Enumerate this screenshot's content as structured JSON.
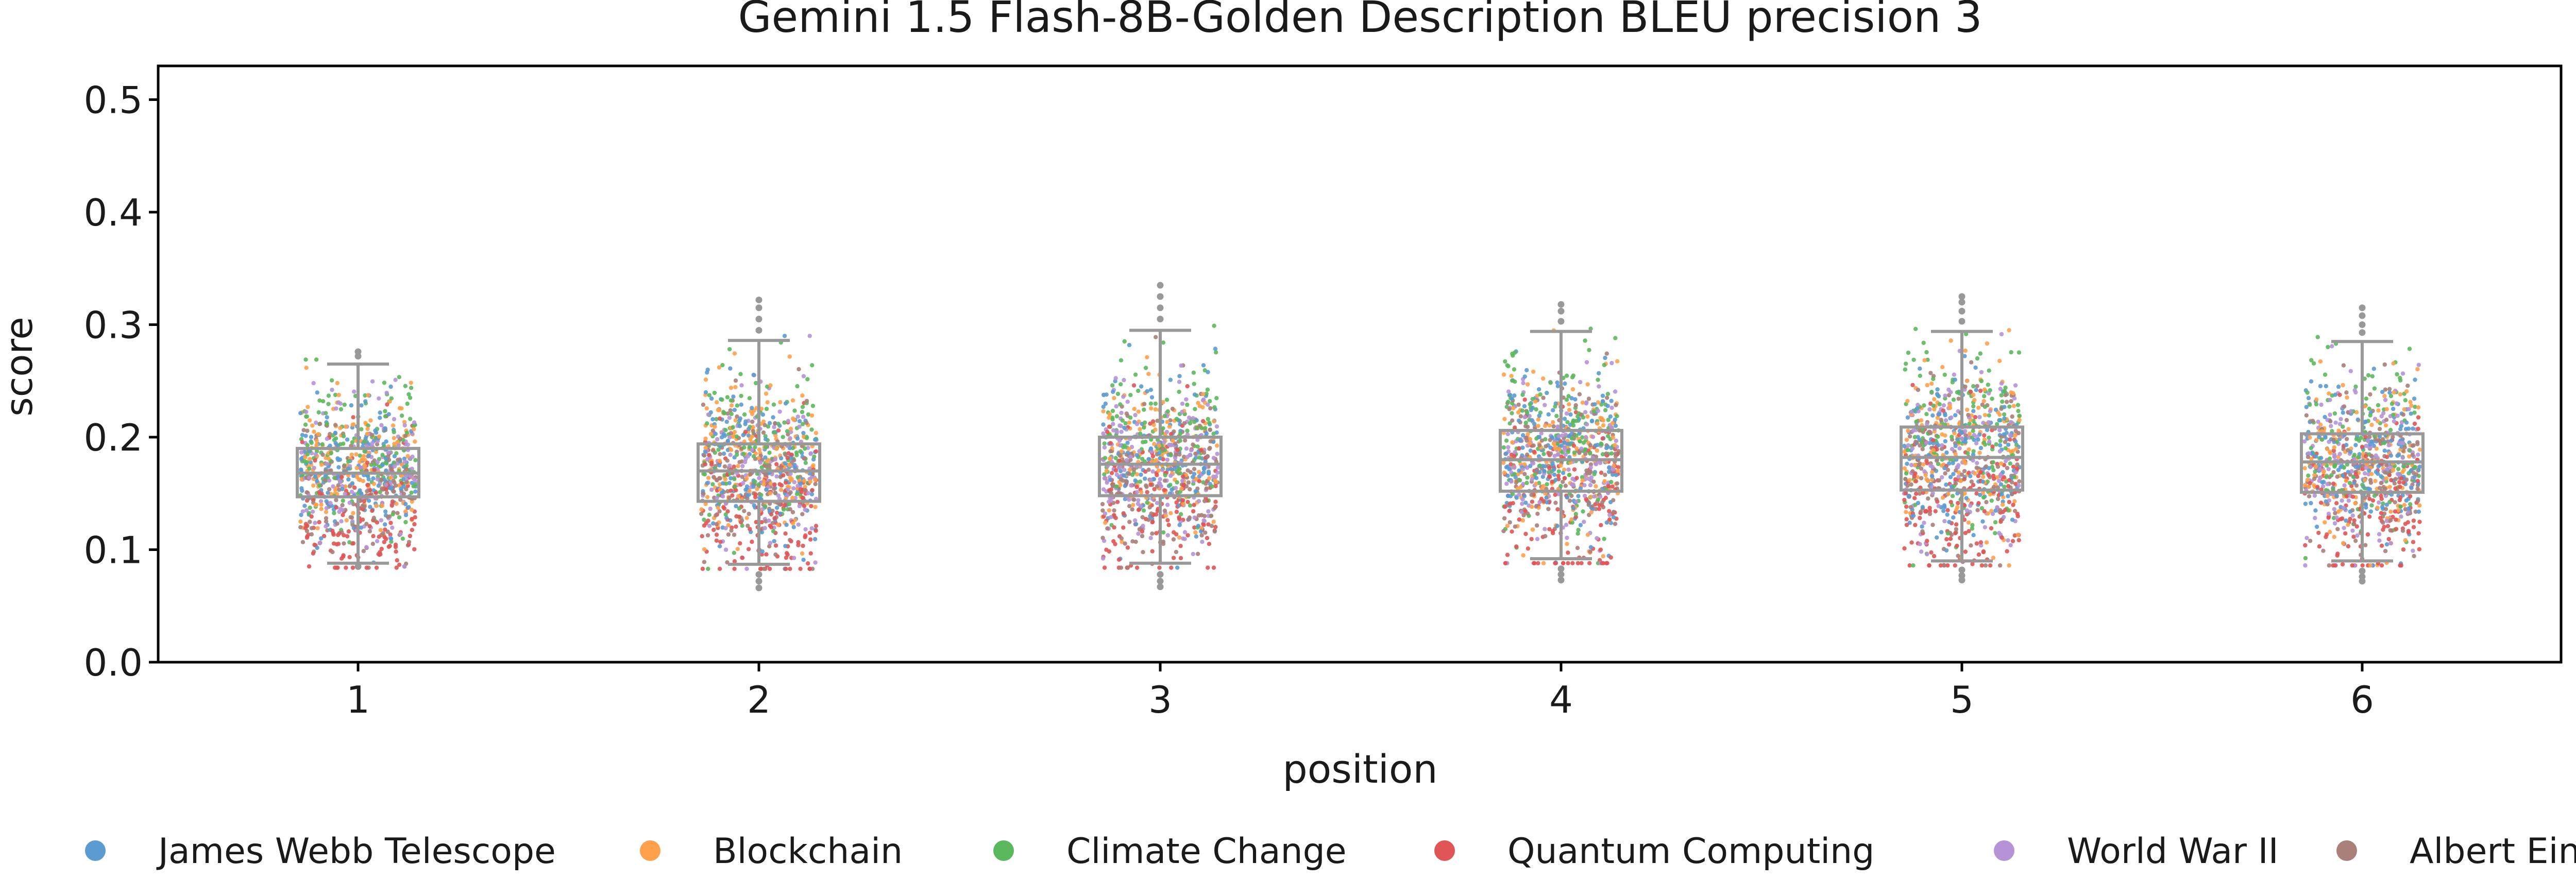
{
  "chart_data": {
    "type": "box-strip",
    "title": "Gemini 1.5 Flash-8B-Golden Description BLEU precision 3",
    "xlabel": "position",
    "ylabel": "score",
    "categories": [
      "1",
      "2",
      "3",
      "4",
      "5",
      "6"
    ],
    "ylim": [
      0.0,
      0.53
    ],
    "yticks": [
      "0.0",
      "0.1",
      "0.2",
      "0.3",
      "0.4",
      "0.5"
    ],
    "grid": false,
    "legend_position": "bottom",
    "series": [
      {
        "name": "James Webb Telescope",
        "color": "#5b9bd1"
      },
      {
        "name": "Blockchain",
        "color": "#ffa14a"
      },
      {
        "name": "Climate Change",
        "color": "#5cb85c"
      },
      {
        "name": "Quantum Computing",
        "color": "#e05555"
      },
      {
        "name": "World War II",
        "color": "#b593d6"
      },
      {
        "name": "Albert Einstein",
        "color": "#a9807a"
      }
    ],
    "boxes": [
      {
        "category": "1",
        "whisker_low": 0.088,
        "q1": 0.147,
        "median": 0.168,
        "q3": 0.19,
        "whisker_high": 0.265,
        "outliers": [
          0.272,
          0.276,
          0.085
        ]
      },
      {
        "category": "2",
        "whisker_low": 0.087,
        "q1": 0.143,
        "median": 0.17,
        "q3": 0.194,
        "whisker_high": 0.286,
        "outliers": [
          0.295,
          0.305,
          0.315,
          0.322,
          0.078,
          0.072,
          0.066
        ]
      },
      {
        "category": "3",
        "whisker_low": 0.088,
        "q1": 0.148,
        "median": 0.176,
        "q3": 0.2,
        "whisker_high": 0.295,
        "outliers": [
          0.305,
          0.315,
          0.325,
          0.335,
          0.078,
          0.072,
          0.067
        ]
      },
      {
        "category": "4",
        "whisker_low": 0.092,
        "q1": 0.152,
        "median": 0.18,
        "q3": 0.206,
        "whisker_high": 0.294,
        "outliers": [
          0.303,
          0.312,
          0.318,
          0.083,
          0.078,
          0.073
        ]
      },
      {
        "category": "5",
        "whisker_low": 0.09,
        "q1": 0.153,
        "median": 0.182,
        "q3": 0.209,
        "whisker_high": 0.294,
        "outliers": [
          0.303,
          0.312,
          0.32,
          0.325,
          0.082,
          0.077,
          0.073
        ]
      },
      {
        "category": "6",
        "whisker_low": 0.09,
        "q1": 0.151,
        "median": 0.178,
        "q3": 0.203,
        "whisker_high": 0.285,
        "outliers": [
          0.293,
          0.3,
          0.308,
          0.315,
          0.081,
          0.076,
          0.072
        ]
      }
    ],
    "points_per_category": 900
  }
}
